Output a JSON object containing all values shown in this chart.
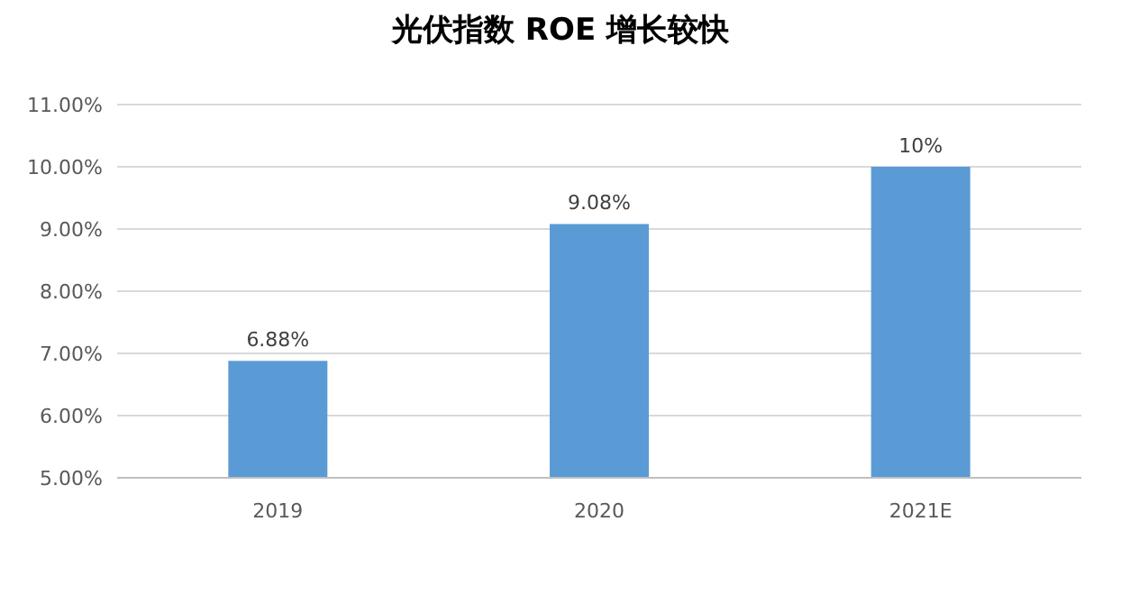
{
  "chart_data": {
    "type": "bar",
    "title": "光伏指数 ROE 增长较快",
    "categories": [
      "2019",
      "2020",
      "2021E"
    ],
    "values": [
      6.88,
      9.08,
      10
    ],
    "value_labels": [
      "6.88%",
      "9.08%",
      "10%"
    ],
    "color": "#5b9bd5",
    "ylim": [
      5,
      11
    ],
    "yticks": [
      {
        "value": 5,
        "label": "5.00%"
      },
      {
        "value": 6,
        "label": "6.00%"
      },
      {
        "value": 7,
        "label": "7.00%"
      },
      {
        "value": 8,
        "label": "8.00%"
      },
      {
        "value": 9,
        "label": "9.00%"
      },
      {
        "value": 10,
        "label": "10.00%"
      },
      {
        "value": 11,
        "label": "11.00%"
      }
    ],
    "grid": "y"
  }
}
